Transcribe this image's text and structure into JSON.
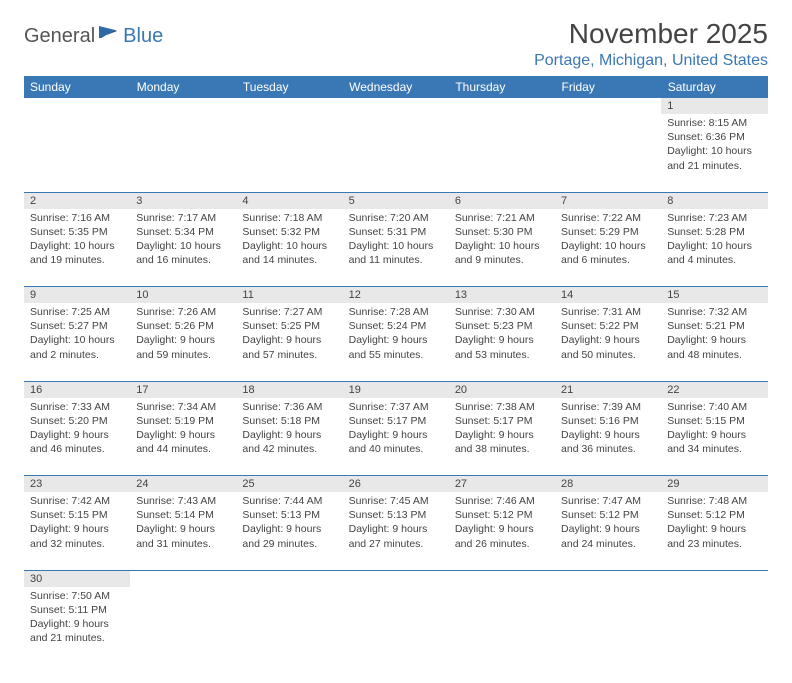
{
  "logo": {
    "part1": "General",
    "part2": "Blue"
  },
  "title": "November 2025",
  "location": "Portage, Michigan, United States",
  "colors": {
    "header_bg": "#3a78b5",
    "header_text": "#ffffff",
    "daynum_bg": "#e8e8e8",
    "border": "#3a78b5",
    "text": "#444444",
    "logo_gray": "#555555",
    "logo_blue": "#3a78b5"
  },
  "day_headers": [
    "Sunday",
    "Monday",
    "Tuesday",
    "Wednesday",
    "Thursday",
    "Friday",
    "Saturday"
  ],
  "weeks": [
    [
      null,
      null,
      null,
      null,
      null,
      null,
      {
        "n": "1",
        "sr": "8:15 AM",
        "ss": "6:36 PM",
        "dl": "10 hours and 21 minutes."
      }
    ],
    [
      {
        "n": "2",
        "sr": "7:16 AM",
        "ss": "5:35 PM",
        "dl": "10 hours and 19 minutes."
      },
      {
        "n": "3",
        "sr": "7:17 AM",
        "ss": "5:34 PM",
        "dl": "10 hours and 16 minutes."
      },
      {
        "n": "4",
        "sr": "7:18 AM",
        "ss": "5:32 PM",
        "dl": "10 hours and 14 minutes."
      },
      {
        "n": "5",
        "sr": "7:20 AM",
        "ss": "5:31 PM",
        "dl": "10 hours and 11 minutes."
      },
      {
        "n": "6",
        "sr": "7:21 AM",
        "ss": "5:30 PM",
        "dl": "10 hours and 9 minutes."
      },
      {
        "n": "7",
        "sr": "7:22 AM",
        "ss": "5:29 PM",
        "dl": "10 hours and 6 minutes."
      },
      {
        "n": "8",
        "sr": "7:23 AM",
        "ss": "5:28 PM",
        "dl": "10 hours and 4 minutes."
      }
    ],
    [
      {
        "n": "9",
        "sr": "7:25 AM",
        "ss": "5:27 PM",
        "dl": "10 hours and 2 minutes."
      },
      {
        "n": "10",
        "sr": "7:26 AM",
        "ss": "5:26 PM",
        "dl": "9 hours and 59 minutes."
      },
      {
        "n": "11",
        "sr": "7:27 AM",
        "ss": "5:25 PM",
        "dl": "9 hours and 57 minutes."
      },
      {
        "n": "12",
        "sr": "7:28 AM",
        "ss": "5:24 PM",
        "dl": "9 hours and 55 minutes."
      },
      {
        "n": "13",
        "sr": "7:30 AM",
        "ss": "5:23 PM",
        "dl": "9 hours and 53 minutes."
      },
      {
        "n": "14",
        "sr": "7:31 AM",
        "ss": "5:22 PM",
        "dl": "9 hours and 50 minutes."
      },
      {
        "n": "15",
        "sr": "7:32 AM",
        "ss": "5:21 PM",
        "dl": "9 hours and 48 minutes."
      }
    ],
    [
      {
        "n": "16",
        "sr": "7:33 AM",
        "ss": "5:20 PM",
        "dl": "9 hours and 46 minutes."
      },
      {
        "n": "17",
        "sr": "7:34 AM",
        "ss": "5:19 PM",
        "dl": "9 hours and 44 minutes."
      },
      {
        "n": "18",
        "sr": "7:36 AM",
        "ss": "5:18 PM",
        "dl": "9 hours and 42 minutes."
      },
      {
        "n": "19",
        "sr": "7:37 AM",
        "ss": "5:17 PM",
        "dl": "9 hours and 40 minutes."
      },
      {
        "n": "20",
        "sr": "7:38 AM",
        "ss": "5:17 PM",
        "dl": "9 hours and 38 minutes."
      },
      {
        "n": "21",
        "sr": "7:39 AM",
        "ss": "5:16 PM",
        "dl": "9 hours and 36 minutes."
      },
      {
        "n": "22",
        "sr": "7:40 AM",
        "ss": "5:15 PM",
        "dl": "9 hours and 34 minutes."
      }
    ],
    [
      {
        "n": "23",
        "sr": "7:42 AM",
        "ss": "5:15 PM",
        "dl": "9 hours and 32 minutes."
      },
      {
        "n": "24",
        "sr": "7:43 AM",
        "ss": "5:14 PM",
        "dl": "9 hours and 31 minutes."
      },
      {
        "n": "25",
        "sr": "7:44 AM",
        "ss": "5:13 PM",
        "dl": "9 hours and 29 minutes."
      },
      {
        "n": "26",
        "sr": "7:45 AM",
        "ss": "5:13 PM",
        "dl": "9 hours and 27 minutes."
      },
      {
        "n": "27",
        "sr": "7:46 AM",
        "ss": "5:12 PM",
        "dl": "9 hours and 26 minutes."
      },
      {
        "n": "28",
        "sr": "7:47 AM",
        "ss": "5:12 PM",
        "dl": "9 hours and 24 minutes."
      },
      {
        "n": "29",
        "sr": "7:48 AM",
        "ss": "5:12 PM",
        "dl": "9 hours and 23 minutes."
      }
    ],
    [
      {
        "n": "30",
        "sr": "7:50 AM",
        "ss": "5:11 PM",
        "dl": "9 hours and 21 minutes."
      },
      null,
      null,
      null,
      null,
      null,
      null
    ]
  ],
  "labels": {
    "sunrise": "Sunrise:",
    "sunset": "Sunset:",
    "daylight": "Daylight:"
  }
}
